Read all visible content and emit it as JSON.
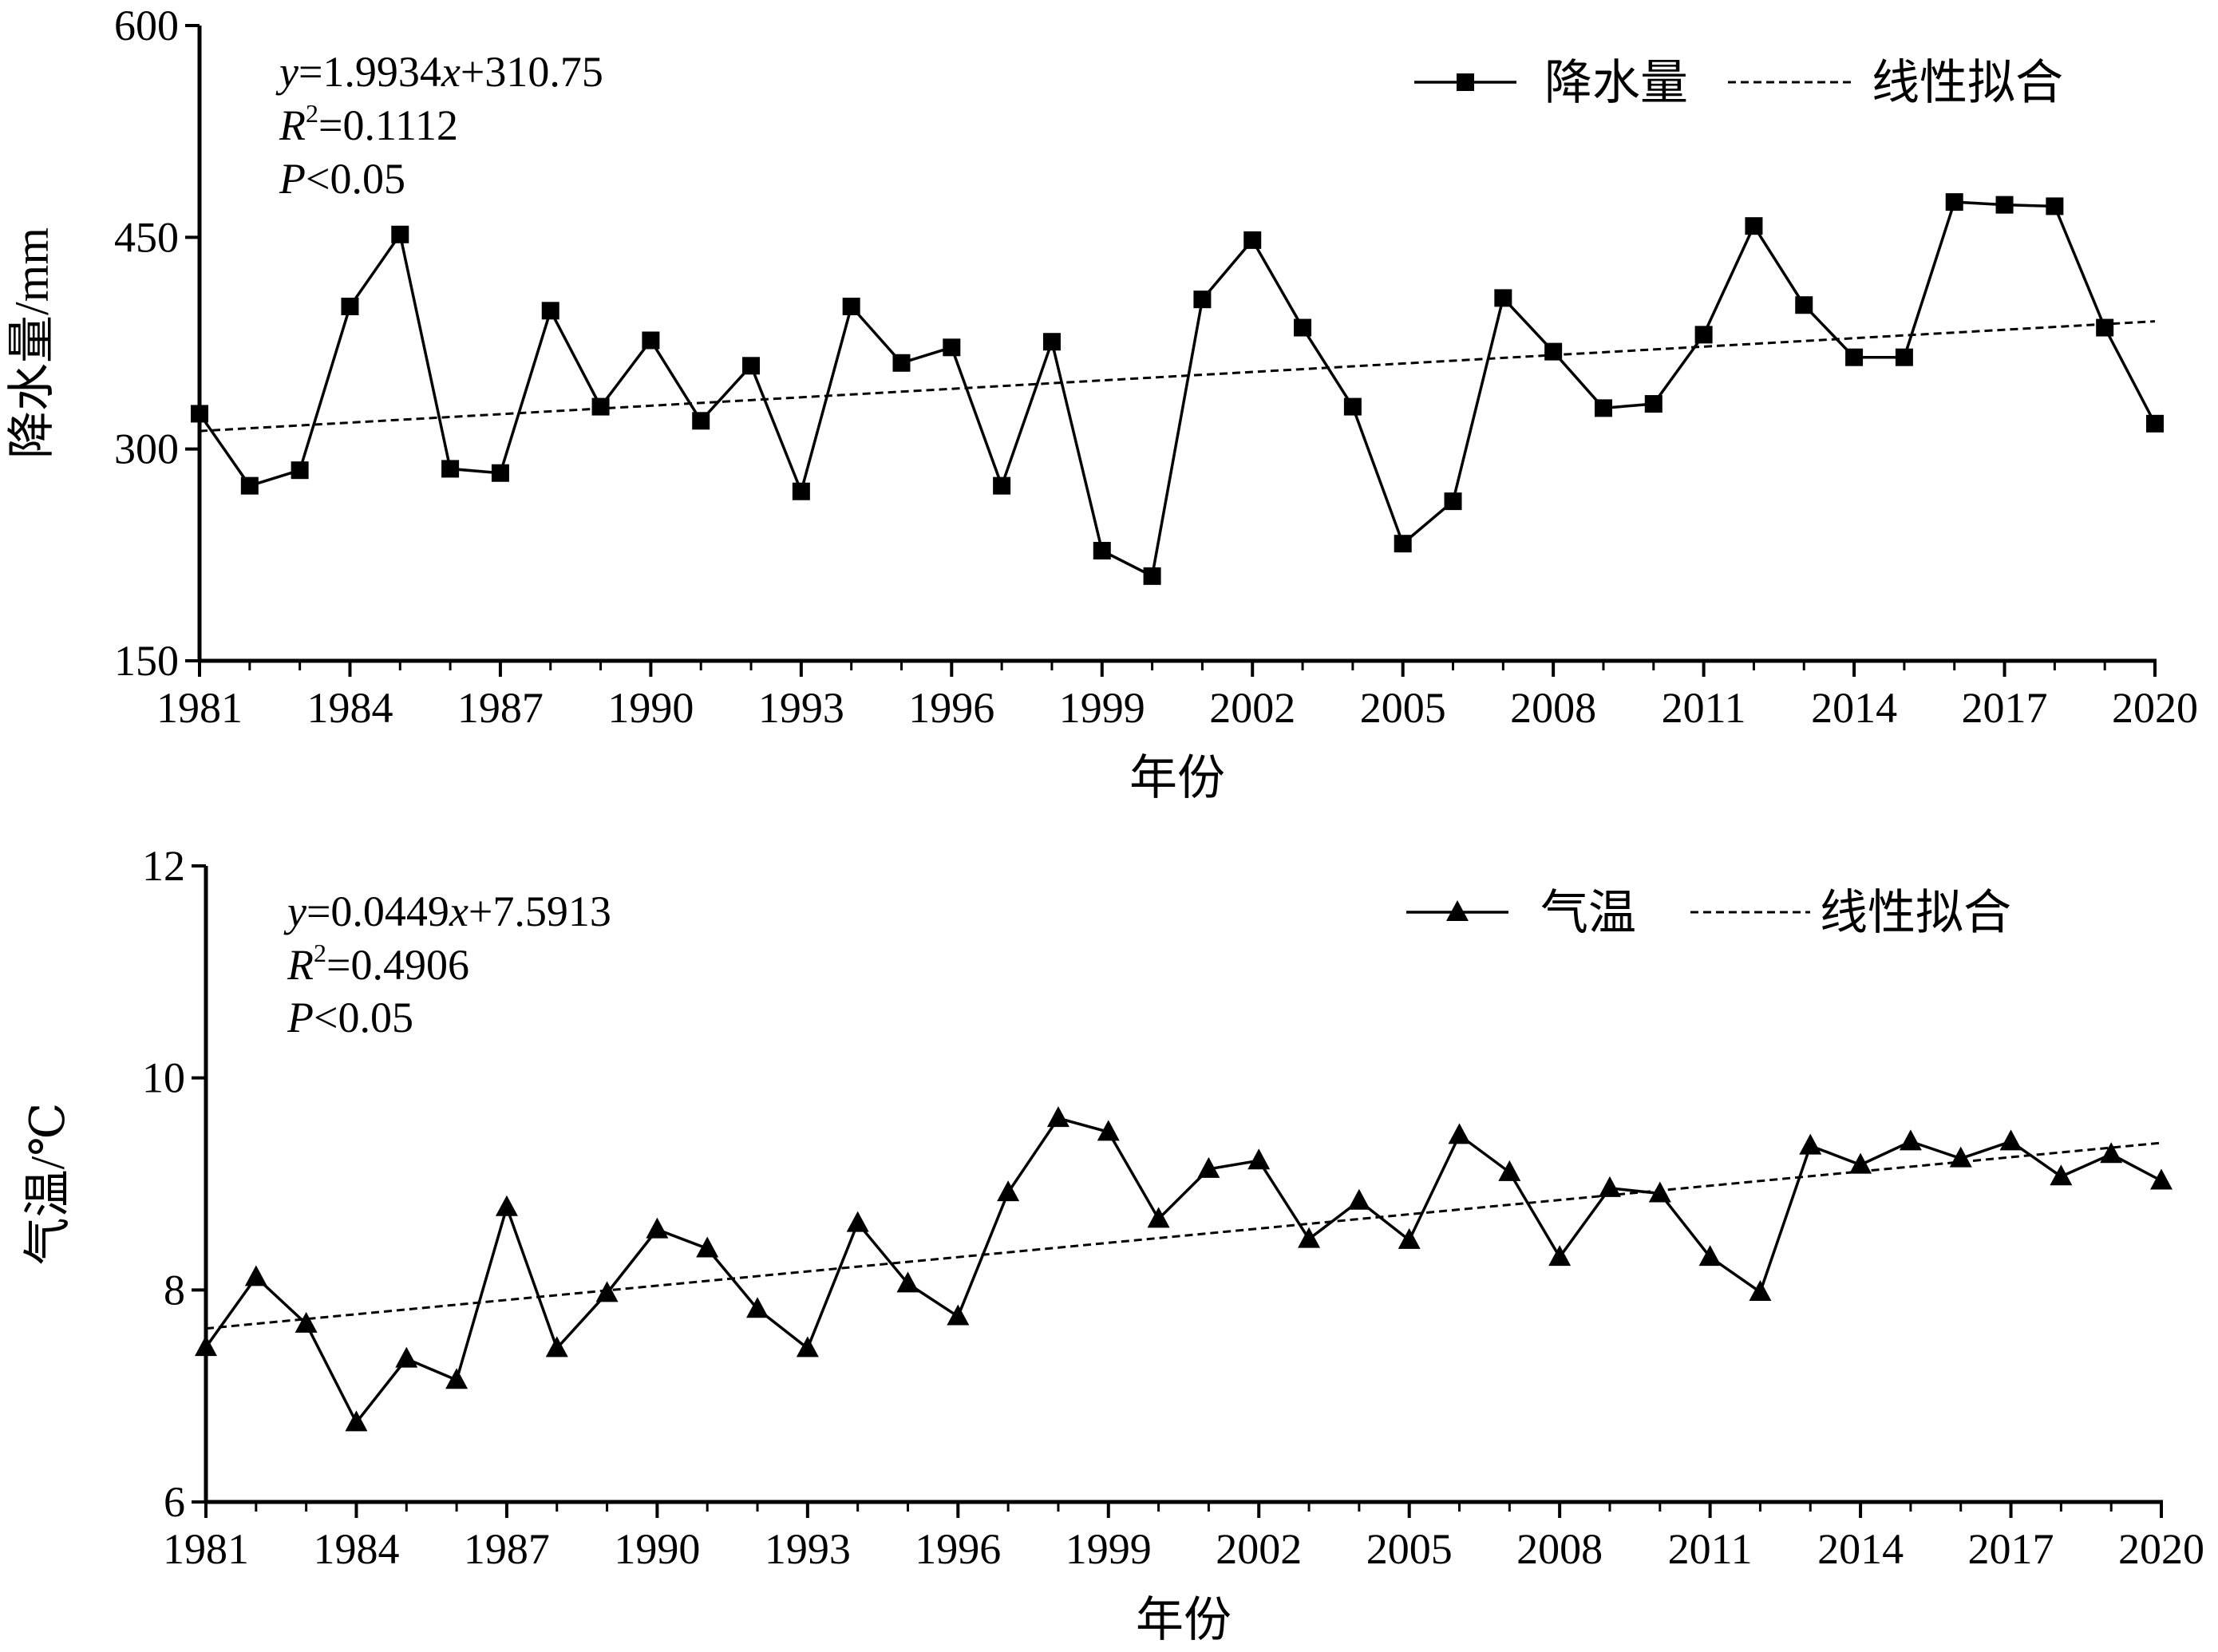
{
  "chart_data": [
    {
      "type": "line",
      "ylabel": "降水量/mm",
      "xlabel": "年份",
      "ylim": [
        150,
        600
      ],
      "yticks": [
        150,
        300,
        450,
        600
      ],
      "xlim": [
        1981,
        2020
      ],
      "xticks": [
        1981,
        1984,
        1987,
        1990,
        1993,
        1996,
        1999,
        2002,
        2005,
        2008,
        2011,
        2014,
        2017,
        2020
      ],
      "marker": "square",
      "legend_position": "top-right",
      "annotation": {
        "equation_parts": [
          {
            "text": "y",
            "italic": true
          },
          {
            "text": "=1.9934",
            "italic": false
          },
          {
            "text": "x",
            "italic": true
          },
          {
            "text": "+310.75",
            "italic": false
          }
        ],
        "r2_symbol": "R",
        "r2_value": "=0.1112",
        "p_symbol": "P",
        "p_value": "<0.05"
      },
      "series": [
        {
          "name": "降水量",
          "x": [
            1981,
            1982,
            1983,
            1984,
            1985,
            1986,
            1987,
            1988,
            1989,
            1990,
            1991,
            1992,
            1993,
            1994,
            1995,
            1996,
            1997,
            1998,
            1999,
            2000,
            2001,
            2002,
            2003,
            2004,
            2005,
            2006,
            2007,
            2008,
            2009,
            2010,
            2011,
            2012,
            2013,
            2014,
            2015,
            2016,
            2017,
            2018,
            2019,
            2020
          ],
          "values": [
            325,
            274,
            285,
            401,
            452,
            286,
            283,
            398,
            330,
            377,
            320,
            359,
            270,
            401,
            361,
            372,
            274,
            376,
            228,
            210,
            406,
            448,
            386,
            330,
            233,
            263,
            407,
            369,
            329,
            332,
            381,
            458,
            402,
            365,
            365,
            475,
            473,
            472,
            386,
            318
          ]
        },
        {
          "name": "线性拟合",
          "fit": {
            "slope": 1.9934,
            "intercept": 310.75
          }
        }
      ]
    },
    {
      "type": "line",
      "ylabel": "气温/℃",
      "xlabel": "年份",
      "ylim": [
        6,
        12
      ],
      "yticks": [
        6,
        8,
        10,
        12
      ],
      "xlim": [
        1981,
        2020
      ],
      "xticks": [
        1981,
        1984,
        1987,
        1990,
        1993,
        1996,
        1999,
        2002,
        2005,
        2008,
        2011,
        2014,
        2017,
        2020
      ],
      "marker": "triangle",
      "legend_position": "top-right",
      "annotation": {
        "equation_parts": [
          {
            "text": "y",
            "italic": true
          },
          {
            "text": "=0.0449",
            "italic": false
          },
          {
            "text": "x",
            "italic": true
          },
          {
            "text": "+7.5913",
            "italic": false
          }
        ],
        "r2_symbol": "R",
        "r2_value": "=0.4906",
        "p_symbol": "P",
        "p_value": "<0.05"
      },
      "series": [
        {
          "name": "气温",
          "x": [
            1981,
            1982,
            1983,
            1984,
            1985,
            1986,
            1987,
            1988,
            1989,
            1990,
            1991,
            1992,
            1993,
            1994,
            1995,
            1996,
            1997,
            1998,
            1999,
            2000,
            2001,
            2002,
            2003,
            2004,
            2005,
            2006,
            2007,
            2008,
            2009,
            2010,
            2011,
            2012,
            2013,
            2014,
            2015,
            2016,
            2017,
            2018,
            2019,
            2020
          ],
          "values": [
            7.46,
            8.12,
            7.68,
            6.75,
            7.35,
            7.15,
            8.78,
            7.45,
            7.97,
            8.57,
            8.39,
            7.82,
            7.45,
            8.63,
            8.06,
            7.75,
            8.92,
            9.62,
            9.49,
            8.67,
            9.14,
            9.22,
            8.48,
            8.84,
            8.47,
            9.46,
            9.11,
            8.31,
            8.96,
            8.91,
            8.31,
            7.98,
            9.36,
            9.18,
            9.4,
            9.24,
            9.4,
            9.07,
            9.28,
            9.03
          ]
        },
        {
          "name": "线性拟合",
          "fit": {
            "slope": 0.0449,
            "intercept": 7.5913
          }
        }
      ]
    }
  ]
}
